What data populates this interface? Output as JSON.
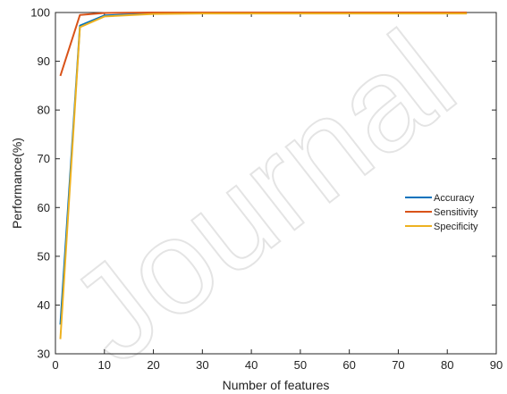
{
  "chart_data": {
    "type": "line",
    "title": "",
    "xlabel": "Number of features",
    "ylabel": "Performance(%)",
    "xlim": [
      0,
      90
    ],
    "ylim": [
      30,
      100
    ],
    "xticks": [
      0,
      10,
      20,
      30,
      40,
      50,
      60,
      70,
      80,
      90
    ],
    "yticks": [
      30,
      40,
      50,
      60,
      70,
      80,
      90,
      100
    ],
    "grid": false,
    "legend_position": "right",
    "series": [
      {
        "name": "Accuracy",
        "color": "#0072BD",
        "x": [
          1,
          5,
          10,
          20,
          30,
          40,
          50,
          60,
          70,
          80,
          84
        ],
        "y": [
          36,
          97.3,
          99.4,
          99.8,
          99.9,
          99.9,
          99.9,
          99.9,
          99.9,
          99.9,
          99.9
        ]
      },
      {
        "name": "Sensitivity",
        "color": "#D95319",
        "x": [
          1,
          5,
          10,
          20,
          30,
          40,
          50,
          60,
          70,
          80,
          84
        ],
        "y": [
          87,
          99.5,
          99.9,
          100,
          100,
          100,
          100,
          100,
          100,
          100,
          100
        ]
      },
      {
        "name": "Specificity",
        "color": "#EDB120",
        "x": [
          1,
          5,
          10,
          20,
          30,
          40,
          50,
          60,
          70,
          80,
          84
        ],
        "y": [
          33,
          97,
          99.2,
          99.7,
          99.8,
          99.8,
          99.8,
          99.8,
          99.8,
          99.8,
          99.8
        ]
      }
    ]
  },
  "watermark": "Journal"
}
